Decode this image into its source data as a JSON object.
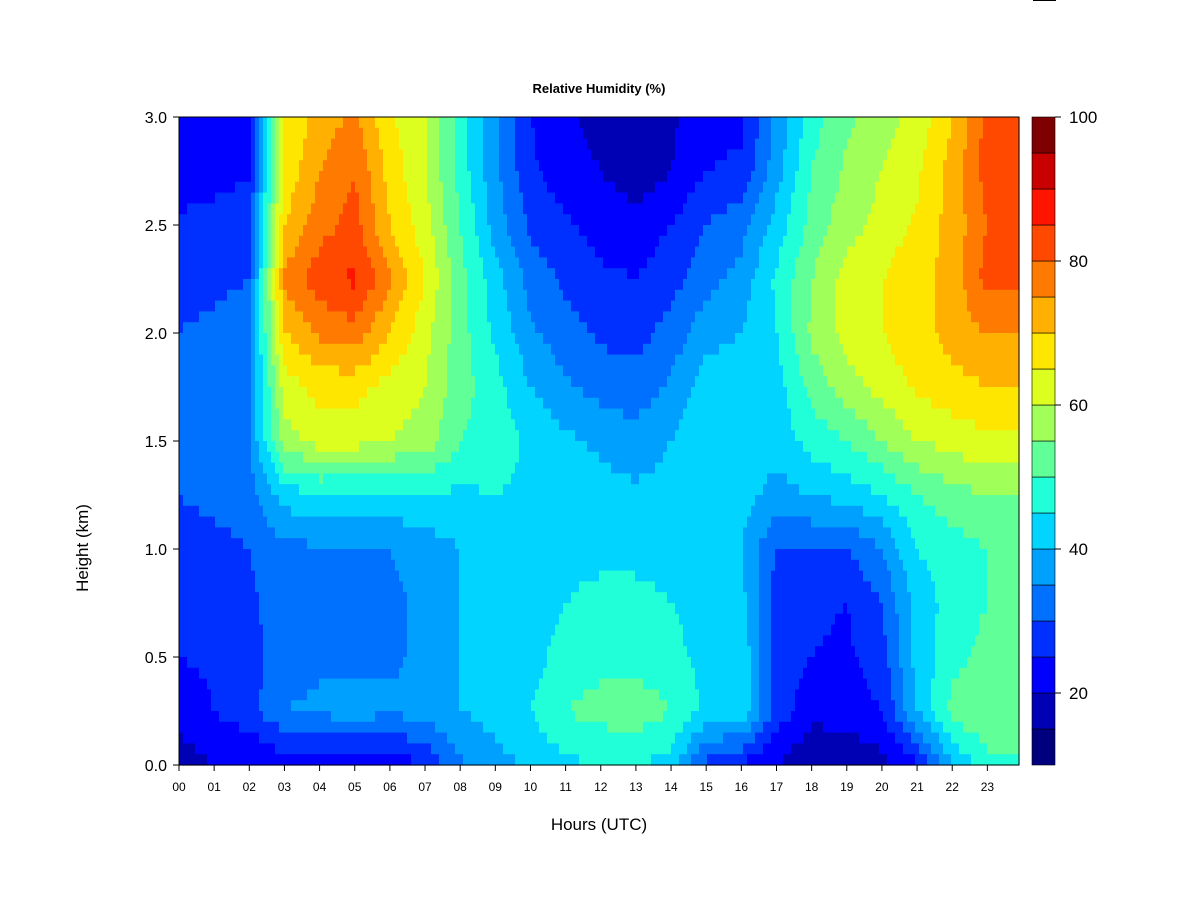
{
  "chart_data": {
    "type": "heatmap",
    "title": "Relative Humidity (%)",
    "xlabel": "Hours (UTC)",
    "ylabel": "Height (km)",
    "x_ticks": [
      "00",
      "01",
      "02",
      "03",
      "04",
      "05",
      "06",
      "07",
      "08",
      "09",
      "10",
      "11",
      "12",
      "13",
      "14",
      "15",
      "16",
      "17",
      "18",
      "19",
      "20",
      "21",
      "22",
      "23"
    ],
    "y_ticks": [
      "0.0",
      "0.5",
      "1.0",
      "1.5",
      "2.0",
      "2.5",
      "3.0"
    ],
    "xlim": [
      0,
      23.9
    ],
    "ylim": [
      0.0,
      3.0
    ],
    "colorbar": {
      "range": [
        10,
        100
      ],
      "levels": [
        10,
        15,
        20,
        25,
        30,
        35,
        40,
        45,
        50,
        55,
        60,
        65,
        70,
        75,
        80,
        85,
        90,
        95,
        100
      ],
      "colors": [
        "#00007f",
        "#0000b5",
        "#0000ff",
        "#0030ff",
        "#0070ff",
        "#00a0ff",
        "#00d4ff",
        "#20ffd8",
        "#60ff98",
        "#a0ff58",
        "#dcff20",
        "#ffe600",
        "#ffb000",
        "#ff7a00",
        "#ff4800",
        "#ff1400",
        "#c80000",
        "#7f0000"
      ],
      "tick_labels": [
        "20",
        "40",
        "60",
        "80",
        "100"
      ]
    },
    "x_hours": [
      0,
      1,
      2,
      3,
      4,
      5,
      6,
      7,
      8,
      9,
      10,
      11,
      12,
      13,
      14,
      15,
      16,
      17,
      18,
      19,
      20,
      21,
      22,
      23
    ],
    "y_heights_km": [
      0.0,
      0.25,
      0.5,
      0.75,
      1.0,
      1.25,
      1.5,
      1.75,
      2.0,
      2.25,
      2.5,
      2.75,
      3.0
    ],
    "values_by_height": [
      [
        17,
        20,
        20,
        22,
        23,
        23,
        22,
        25,
        34,
        38,
        41,
        44,
        45,
        45,
        43,
        28,
        24,
        20,
        15,
        16,
        18,
        24,
        40,
        48
      ],
      [
        22,
        25,
        28,
        35,
        36,
        37,
        36,
        37,
        40,
        42,
        45,
        50,
        52,
        53,
        50,
        44,
        44,
        28,
        22,
        22,
        25,
        40,
        52,
        55
      ],
      [
        25,
        26,
        28,
        33,
        34,
        33,
        34,
        36,
        40,
        42,
        43,
        47,
        48,
        48,
        47,
        43,
        44,
        27,
        25,
        24,
        28,
        42,
        48,
        52
      ],
      [
        26,
        27,
        29,
        33,
        33,
        33,
        34,
        36,
        40,
        42,
        43,
        45,
        46,
        46,
        45,
        42,
        42,
        27,
        26,
        25,
        30,
        42,
        47,
        50
      ],
      [
        27,
        28,
        30,
        34,
        34,
        34,
        35,
        37,
        40,
        42,
        43,
        44,
        44,
        44,
        44,
        42,
        40,
        30,
        30,
        30,
        35,
        45,
        48,
        50
      ],
      [
        30,
        32,
        33,
        42,
        45,
        44,
        44,
        45,
        44,
        45,
        44,
        43,
        42,
        41,
        42,
        43,
        42,
        38,
        40,
        42,
        45,
        50,
        53,
        55
      ],
      [
        30,
        33,
        35,
        58,
        62,
        62,
        60,
        58,
        50,
        48,
        44,
        41,
        39,
        37,
        40,
        45,
        43,
        42,
        47,
        50,
        55,
        60,
        62,
        64
      ],
      [
        31,
        33,
        35,
        62,
        67,
        67,
        63,
        60,
        52,
        47,
        40,
        36,
        33,
        32,
        36,
        43,
        43,
        43,
        52,
        58,
        62,
        66,
        68,
        70
      ],
      [
        30,
        32,
        34,
        70,
        76,
        78,
        70,
        62,
        52,
        44,
        36,
        32,
        29,
        28,
        32,
        38,
        40,
        45,
        56,
        62,
        65,
        68,
        72,
        75
      ],
      [
        27,
        28,
        30,
        76,
        83,
        86,
        76,
        65,
        52,
        42,
        33,
        29,
        26,
        25,
        28,
        33,
        37,
        46,
        55,
        62,
        65,
        68,
        72,
        82
      ],
      [
        26,
        27,
        29,
        70,
        78,
        82,
        70,
        62,
        50,
        38,
        29,
        26,
        23,
        22,
        25,
        30,
        33,
        42,
        52,
        58,
        62,
        66,
        72,
        80
      ],
      [
        22,
        23,
        24,
        66,
        75,
        80,
        68,
        60,
        48,
        36,
        26,
        22,
        20,
        17,
        20,
        25,
        26,
        38,
        50,
        56,
        60,
        64,
        72,
        82
      ],
      [
        20,
        21,
        23,
        65,
        72,
        76,
        66,
        60,
        48,
        36,
        25,
        21,
        18,
        15,
        19,
        23,
        24,
        36,
        48,
        54,
        58,
        62,
        70,
        82
      ]
    ]
  }
}
